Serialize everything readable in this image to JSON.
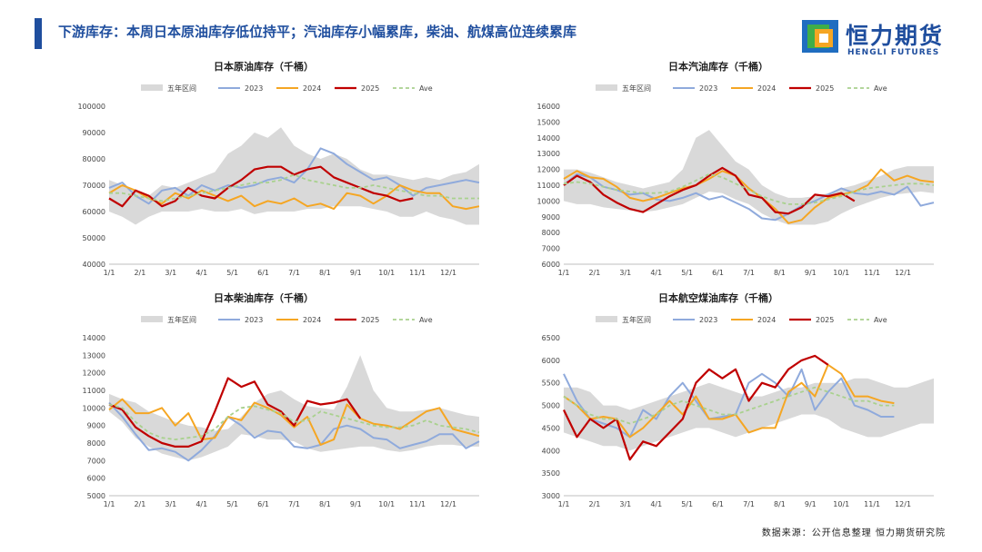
{
  "header": {
    "title": "下游库存：本周日本原油库存低位持平；汽油库存小幅累库，柴油、航煤高位连续累库",
    "logo_cn": "恒力期货",
    "logo_en": "HENGLI FUTURES"
  },
  "footer": {
    "source": "数据来源：公开信息整理  恒力期货研究院"
  },
  "colors": {
    "brand": "#1f4e9e",
    "range": "#d9d9d9",
    "y2023": "#8faadc",
    "y2024": "#f5a623",
    "y2025": "#c00000",
    "ave": "#a9d18e"
  },
  "legend": [
    "五年区间",
    "2023",
    "2024",
    "2025",
    "Ave"
  ],
  "month_labels": [
    "1/1",
    "2/1",
    "3/1",
    "4/1",
    "5/1",
    "6/1",
    "7/1",
    "8/1",
    "9/1",
    "10/1",
    "11/1",
    "12/1"
  ],
  "chart_data": [
    {
      "id": "crude",
      "type": "line",
      "title": "日本原油库存（千桶）",
      "unit": "千桶",
      "ylim": [
        40000,
        100000
      ],
      "yticks": [
        "100000",
        "90000",
        "80000",
        "70000",
        "60000",
        "50000",
        "40000"
      ],
      "series": [
        {
          "name": "五年区间上沿",
          "values": [
            72000,
            70000,
            68000,
            66000,
            70000,
            69000,
            71000,
            73000,
            75000,
            82000,
            85000,
            90000,
            88000,
            92000,
            85000,
            82000,
            80000,
            82000,
            80000,
            76000,
            74000,
            74000,
            73000,
            72000,
            73000,
            72000,
            74000,
            75000,
            78000
          ]
        },
        {
          "name": "五年区间下沿",
          "values": [
            60000,
            58000,
            55000,
            58000,
            60000,
            60000,
            60000,
            61000,
            60000,
            60000,
            61000,
            59000,
            60000,
            60000,
            60000,
            61000,
            61000,
            62000,
            62000,
            62000,
            61000,
            60000,
            58000,
            58000,
            60000,
            58000,
            57000,
            55000,
            55000
          ]
        },
        {
          "name": "2023",
          "values": [
            69000,
            71000,
            66000,
            63000,
            68000,
            69000,
            66000,
            70000,
            68000,
            70000,
            69000,
            70000,
            72000,
            73000,
            71000,
            76000,
            84000,
            82000,
            78000,
            75000,
            72000,
            73000,
            70000,
            66000,
            69000,
            70000,
            71000,
            72000,
            71000
          ]
        },
        {
          "name": "2024",
          "values": [
            67000,
            70000,
            68000,
            65000,
            63000,
            67000,
            65000,
            68000,
            66000,
            64000,
            66000,
            62000,
            64000,
            63000,
            65000,
            62000,
            63000,
            61000,
            67000,
            66000,
            63000,
            66000,
            70000,
            68000,
            67000,
            67000,
            62000,
            61000,
            62000
          ]
        },
        {
          "name": "2025",
          "values": [
            65000,
            62000,
            68000,
            66000,
            62000,
            64000,
            69000,
            66000,
            65000,
            69000,
            72000,
            76000,
            77000,
            77000,
            74000,
            76000,
            77000,
            73000,
            71000,
            69000,
            67000,
            66000,
            64000,
            65000
          ]
        },
        {
          "name": "Ave",
          "values": [
            67000,
            67000,
            66000,
            65000,
            64000,
            65000,
            66000,
            67000,
            68000,
            69000,
            70000,
            71000,
            71000,
            72000,
            74000,
            72000,
            71000,
            70000,
            69000,
            69000,
            70000,
            69000,
            68000,
            67000,
            66000,
            66000,
            65000,
            65000,
            65000
          ]
        }
      ]
    },
    {
      "id": "gasoline",
      "type": "line",
      "title": "日本汽油库存（千桶）",
      "unit": "千桶",
      "ylim": [
        6000,
        16000
      ],
      "yticks": [
        "16000",
        "15000",
        "14000",
        "13000",
        "12000",
        "11000",
        "10000",
        "9000",
        "8000",
        "7000",
        "6000"
      ],
      "series": [
        {
          "name": "五年区间上沿",
          "values": [
            12000,
            12000,
            11800,
            11500,
            11200,
            11000,
            10800,
            11000,
            11200,
            12000,
            14000,
            14500,
            13500,
            12500,
            12000,
            11000,
            10500,
            10200,
            10200,
            10300,
            10500,
            10800,
            11000,
            11300,
            11600,
            12000,
            12200,
            12200,
            12200
          ]
        },
        {
          "name": "五年区间下沿",
          "values": [
            10000,
            9800,
            9800,
            9600,
            9500,
            9400,
            9300,
            9400,
            9600,
            9800,
            10200,
            10600,
            10500,
            10100,
            9800,
            9200,
            8800,
            8500,
            8500,
            8500,
            8700,
            9200,
            9600,
            9900,
            10200,
            10400,
            10500,
            10600,
            10500
          ]
        },
        {
          "name": "2023",
          "values": [
            11000,
            11700,
            11500,
            10900,
            10700,
            10400,
            10500,
            10100,
            10000,
            10200,
            10500,
            10100,
            10300,
            9900,
            9500,
            8900,
            8800,
            9200,
            9700,
            10000,
            10400,
            10800,
            10500,
            10400,
            10600,
            10400,
            10900,
            9700,
            9900
          ]
        },
        {
          "name": "2024",
          "values": [
            11400,
            11900,
            11500,
            11400,
            10900,
            10200,
            10000,
            10200,
            10500,
            10800,
            11000,
            11400,
            11900,
            11600,
            10800,
            10200,
            9500,
            8600,
            8800,
            9600,
            10200,
            10400,
            10600,
            11000,
            12000,
            11300,
            11600,
            11300,
            11200
          ]
        },
        {
          "name": "2025",
          "values": [
            11000,
            11600,
            11200,
            10400,
            9900,
            9500,
            9300,
            9800,
            10300,
            10700,
            11000,
            11600,
            12100,
            11600,
            10400,
            10200,
            9300,
            9200,
            9600,
            10400,
            10300,
            10500,
            10000
          ]
        },
        {
          "name": "Ave",
          "values": [
            11100,
            11200,
            11100,
            10900,
            10700,
            10600,
            10500,
            10500,
            10600,
            10900,
            11300,
            11700,
            11500,
            11100,
            10700,
            10300,
            10000,
            9800,
            9800,
            9900,
            10100,
            10300,
            10600,
            10800,
            10900,
            11000,
            11100,
            11100,
            11000
          ]
        }
      ]
    },
    {
      "id": "diesel",
      "type": "line",
      "title": "日本柴油库存（千桶）",
      "unit": "千桶",
      "ylim": [
        5000,
        14000
      ],
      "yticks": [
        "14000",
        "13000",
        "12000",
        "11000",
        "10000",
        "9000",
        "8000",
        "7000",
        "6000",
        "5000"
      ],
      "series": [
        {
          "name": "五年区间上沿",
          "values": [
            10800,
            10500,
            10300,
            9800,
            9500,
            9200,
            9000,
            8900,
            8700,
            8800,
            9500,
            10300,
            10800,
            11000,
            10500,
            10100,
            10000,
            9900,
            11200,
            13000,
            11000,
            10000,
            9800,
            9800,
            9900,
            10000,
            9800,
            9600,
            9500
          ]
        },
        {
          "name": "五年区间下沿",
          "values": [
            9800,
            9200,
            8300,
            7800,
            7400,
            7200,
            7000,
            7200,
            7500,
            7800,
            8500,
            8400,
            8200,
            8200,
            8100,
            7700,
            7500,
            7600,
            7700,
            7800,
            7800,
            7600,
            7500,
            7600,
            7800,
            7900,
            7900,
            7800,
            7800
          ]
        },
        {
          "name": "2023",
          "values": [
            10300,
            9500,
            8500,
            7600,
            7700,
            7500,
            7000,
            7600,
            8400,
            9500,
            9000,
            8300,
            8700,
            8600,
            7800,
            7700,
            7900,
            8800,
            9000,
            8800,
            8300,
            8200,
            7700,
            7900,
            8100,
            8500,
            8500,
            7700,
            8100
          ]
        },
        {
          "name": "2024",
          "values": [
            9900,
            10500,
            9700,
            9700,
            10000,
            9000,
            9700,
            8200,
            8300,
            9500,
            9300,
            10300,
            10000,
            9600,
            8900,
            9500,
            7900,
            8200,
            10200,
            9400,
            9100,
            9000,
            8800,
            9300,
            9800,
            10000,
            8800,
            8600,
            8400
          ]
        },
        {
          "name": "2025",
          "values": [
            10200,
            9900,
            8900,
            8400,
            8000,
            7800,
            7800,
            8100,
            9800,
            11700,
            11200,
            11500,
            10200,
            9800,
            9000,
            10400,
            10200,
            10300,
            10500,
            9400
          ]
        },
        {
          "name": "Ave",
          "values": [
            10200,
            10000,
            9200,
            8600,
            8300,
            8200,
            8300,
            8400,
            8800,
            9500,
            10000,
            10100,
            9900,
            9700,
            9200,
            9300,
            9800,
            9600,
            9400,
            9200,
            9000,
            8900,
            8900,
            9000,
            9300,
            9000,
            8900,
            8800,
            8600
          ]
        }
      ]
    },
    {
      "id": "jetfuel",
      "type": "line",
      "title": "日本航空煤油库存（千桶）",
      "unit": "千桶",
      "ylim": [
        3000,
        6500
      ],
      "yticks": [
        "6500",
        "6000",
        "5500",
        "5000",
        "4500",
        "4000",
        "3500",
        "3000"
      ],
      "series": [
        {
          "name": "五年区间上沿",
          "values": [
            5400,
            5400,
            5300,
            5000,
            5000,
            4900,
            5000,
            5100,
            5200,
            5300,
            5400,
            5500,
            5400,
            5300,
            5200,
            5200,
            5300,
            5400,
            5400,
            5500,
            5500,
            5500,
            5600,
            5600,
            5500,
            5400,
            5400,
            5500,
            5600
          ]
        },
        {
          "name": "五年区间下沿",
          "values": [
            4400,
            4300,
            4200,
            4100,
            4100,
            4000,
            4100,
            4200,
            4300,
            4400,
            4500,
            4500,
            4400,
            4300,
            4400,
            4500,
            4600,
            4700,
            4800,
            4800,
            4700,
            4500,
            4400,
            4300,
            4300,
            4400,
            4500,
            4600,
            4600
          ]
        },
        {
          "name": "2023",
          "values": [
            5700,
            5100,
            4700,
            4600,
            4500,
            4300,
            4900,
            4700,
            5200,
            5500,
            5100,
            4700,
            4750,
            4800,
            5500,
            5700,
            5500,
            5200,
            5800,
            4900,
            5300,
            5600,
            5000,
            4900,
            4750,
            4750
          ]
        },
        {
          "name": "2024",
          "values": [
            5200,
            5000,
            4700,
            4750,
            4700,
            4300,
            4500,
            4800,
            5100,
            4800,
            5200,
            4700,
            4700,
            4800,
            4400,
            4500,
            4500,
            5300,
            5500,
            5200,
            5900,
            5700,
            5200,
            5200,
            5100,
            5050
          ]
        },
        {
          "name": "2025",
          "values": [
            4900,
            4300,
            4700,
            4500,
            4700,
            3800,
            4200,
            4100,
            4400,
            4700,
            5500,
            5800,
            5600,
            5800,
            5100,
            5500,
            5400,
            5800,
            6000,
            6100,
            5900
          ]
        },
        {
          "name": "Ave",
          "values": [
            5200,
            5000,
            4800,
            4700,
            4700,
            4600,
            4700,
            4800,
            5000,
            5100,
            5000,
            4900,
            4800,
            4800,
            4900,
            5000,
            5100,
            5200,
            5300,
            5400,
            5300,
            5200,
            5100,
            5100,
            5000,
            5000
          ]
        }
      ]
    }
  ]
}
